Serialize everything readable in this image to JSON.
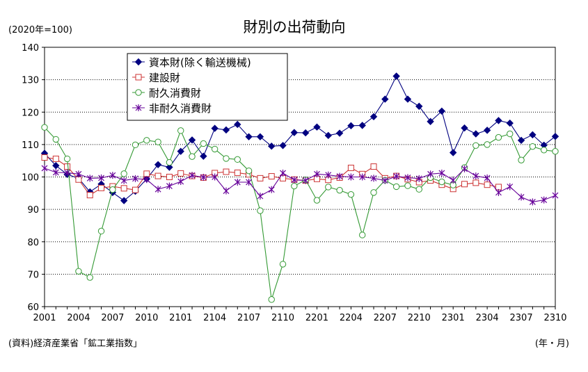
{
  "chart_data": {
    "type": "line",
    "title": "財別の出荷動向",
    "unit_label": "(2020年=100)",
    "source": "(資料)経済産業省「鉱工業指数」",
    "x_unit_label": "(年・月)",
    "ylim": [
      60,
      140
    ],
    "y_ticks": [
      "60",
      "70",
      "80",
      "90",
      "100",
      "110",
      "120",
      "130",
      "140"
    ],
    "grid": true,
    "legend_position": "top-left",
    "x": [
      "2001",
      "2002",
      "2003",
      "2004",
      "2005",
      "2006",
      "2007",
      "2008",
      "2009",
      "2010",
      "2011",
      "2012",
      "2101",
      "2102",
      "2103",
      "2104",
      "2105",
      "2106",
      "2107",
      "2108",
      "2109",
      "2110",
      "2111",
      "2112",
      "2201",
      "2202",
      "2203",
      "2204",
      "2205",
      "2206",
      "2207",
      "2208",
      "2209",
      "2210",
      "2211",
      "2212",
      "2301",
      "2302",
      "2303",
      "2304",
      "2305",
      "2306",
      "2307",
      "2308",
      "2309",
      "2310"
    ],
    "x_tick_labels": [
      "2001",
      "2004",
      "2007",
      "2010",
      "2101",
      "2104",
      "2107",
      "2110",
      "2201",
      "2204",
      "2207",
      "2210",
      "2301",
      "2304",
      "2307",
      "2310"
    ],
    "series": [
      {
        "name": "資本財(除く輸送機械)",
        "color": "#000080",
        "marker": "diamond",
        "values": [
          107.3,
          103.5,
          100.8,
          99.6,
          95.4,
          97.8,
          95.2,
          92.7,
          95.6,
          99.4,
          103.8,
          103.0,
          107.9,
          111.4,
          106.4,
          115.0,
          114.5,
          116.2,
          112.4,
          112.4,
          109.5,
          109.7,
          113.7,
          113.6,
          115.4,
          112.8,
          113.5,
          115.8,
          115.9,
          118.6,
          124.0,
          131.1,
          124.0,
          121.8,
          117.1,
          120.3,
          107.5,
          115.1,
          113.3,
          114.4,
          117.4,
          116.6,
          111.3,
          113.0,
          109.8,
          112.5
        ]
      },
      {
        "name": "建設財",
        "color": "#cc3333",
        "marker": "square",
        "values": [
          106.0,
          105.6,
          103.2,
          99.2,
          94.4,
          96.6,
          97.1,
          96.5,
          96.0,
          101.0,
          100.3,
          100.0,
          101.1,
          100.3,
          99.8,
          101.2,
          101.6,
          101.3,
          100.8,
          99.6,
          100.2,
          99.6,
          99.2,
          98.9,
          99.4,
          99.1,
          99.8,
          102.8,
          100.9,
          103.2,
          99.6,
          100.3,
          99.3,
          98.4,
          98.9,
          97.6,
          96.3,
          97.8,
          98.2,
          97.6,
          96.9,
          null,
          null,
          null,
          null,
          null
        ]
      },
      {
        "name": "耐久消費財",
        "color": "#339933",
        "marker": "circle",
        "values": [
          115.3,
          111.6,
          105.6,
          70.9,
          69.0,
          83.3,
          96.1,
          101.0,
          109.9,
          111.3,
          110.8,
          104.5,
          114.3,
          106.3,
          110.3,
          108.6,
          105.7,
          105.4,
          101.9,
          89.6,
          62.2,
          73.1,
          97.2,
          99.1,
          92.8,
          96.9,
          95.9,
          94.6,
          82.1,
          95.2,
          99.0,
          97.0,
          97.3,
          96.2,
          99.8,
          98.5,
          97.5,
          102.9,
          109.7,
          110.0,
          112.2,
          113.3,
          105.2,
          109.4,
          108.3,
          107.9
        ]
      },
      {
        "name": "非耐久消費財",
        "color": "#660099",
        "marker": "star",
        "values": [
          102.7,
          101.4,
          101.3,
          100.9,
          99.6,
          99.7,
          100.5,
          98.9,
          99.5,
          99.2,
          96.2,
          97.2,
          98.6,
          100.5,
          99.9,
          100.0,
          95.7,
          98.4,
          98.4,
          94.1,
          96.1,
          101.2,
          99.1,
          98.9,
          100.9,
          100.6,
          100.2,
          100.0,
          100.0,
          99.6,
          98.9,
          100.2,
          99.8,
          99.5,
          100.9,
          101.2,
          99.0,
          102.5,
          100.3,
          99.7,
          95.2,
          97.0,
          93.8,
          92.3,
          92.9,
          94.3
        ]
      }
    ]
  }
}
